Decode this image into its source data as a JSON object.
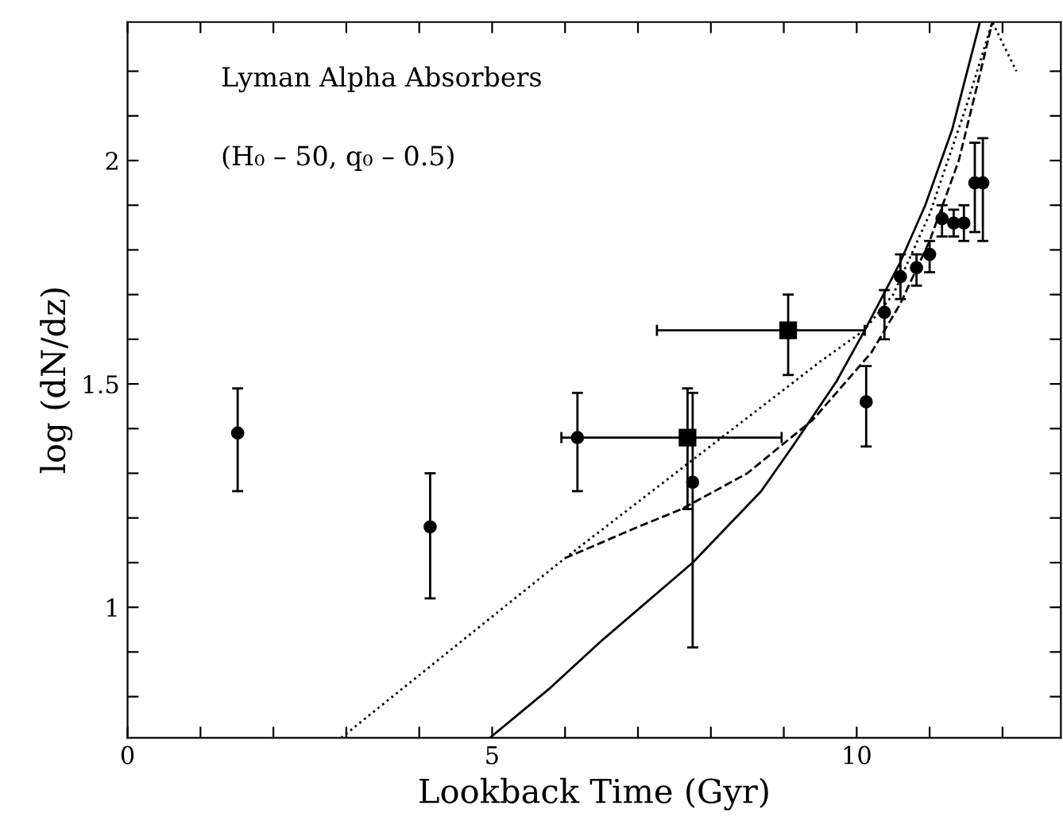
{
  "chart_data": {
    "type": "scatter",
    "xlabel": "Lookback Time (Gyr)",
    "ylabel": "log (dN/dz)",
    "annotations": [
      "Lyman Alpha Absorbers",
      "(H₀ – 50, q₀ – 0.5)"
    ],
    "xlim": [
      0,
      12.8
    ],
    "ylim": [
      0.708,
      2.31
    ],
    "xticks": [
      0,
      {
        "value": 1,
        "label": null
      },
      {
        "value": 2,
        "label": null
      },
      {
        "value": 3,
        "label": null
      },
      {
        "value": 4,
        "label": null
      },
      5,
      {
        "value": 6,
        "label": null
      },
      {
        "value": 7,
        "label": null
      },
      {
        "value": 8,
        "label": null
      },
      {
        "value": 9,
        "label": null
      },
      10,
      {
        "value": 11,
        "label": null
      },
      {
        "value": 12,
        "label": null
      }
    ],
    "yticks": [
      {
        "value": 0.8,
        "label": null
      },
      {
        "value": 0.9,
        "label": null
      },
      1,
      {
        "value": 1.1,
        "label": null
      },
      {
        "value": 1.2,
        "label": null
      },
      {
        "value": 1.3,
        "label": null
      },
      {
        "value": 1.4,
        "label": null
      },
      1.5,
      {
        "value": 1.6,
        "label": null
      },
      {
        "value": 1.7,
        "label": null
      },
      {
        "value": 1.8,
        "label": null
      },
      {
        "value": 1.9,
        "label": null
      },
      2,
      {
        "value": 2.1,
        "label": null
      },
      {
        "value": 2.2,
        "label": null
      }
    ],
    "grid": false,
    "legend": false,
    "series": [
      {
        "marker": "circle",
        "color": "#000000",
        "x": [
          1.51,
          4.15,
          6.17,
          7.75,
          10.13,
          10.38,
          10.6,
          10.82,
          11.0,
          11.17,
          11.33,
          11.47,
          11.62,
          11.73
        ],
        "values": [
          1.39,
          1.18,
          1.38,
          1.28,
          1.46,
          1.66,
          1.74,
          1.76,
          1.79,
          1.87,
          1.86,
          1.86,
          1.95,
          1.95
        ],
        "errors": [
          [
            1.26,
            1.49
          ],
          [
            1.02,
            1.3
          ],
          [
            1.26,
            1.48
          ],
          [
            0.91,
            1.48
          ],
          [
            1.36,
            1.54
          ],
          [
            1.6,
            1.71
          ],
          [
            1.69,
            1.79
          ],
          [
            1.72,
            1.79
          ],
          [
            1.75,
            1.82
          ],
          [
            1.83,
            1.9
          ],
          [
            1.83,
            1.89
          ],
          [
            1.82,
            1.9
          ],
          [
            1.84,
            2.04
          ],
          [
            1.82,
            2.05
          ]
        ]
      },
      {
        "marker": "square",
        "color": "#000000",
        "x": [
          7.68,
          9.06
        ],
        "values": [
          1.38,
          1.62
        ],
        "errors": [
          [
            1.22,
            1.49
          ],
          [
            1.52,
            1.7
          ]
        ],
        "xerrors": [
          [
            5.95,
            8.97
          ],
          [
            7.26,
            10.11
          ]
        ]
      },
      {
        "type": "line",
        "line_style": "solid",
        "color": "#000000",
        "x": [
          4.97,
          5.8,
          6.5,
          7.75,
          8.69,
          9.12,
          9.72,
          10.11,
          10.59,
          10.94,
          11.31,
          11.69
        ],
        "values": [
          0.708,
          0.82,
          0.925,
          1.1,
          1.26,
          1.36,
          1.505,
          1.62,
          1.77,
          1.9,
          2.07,
          2.31
        ]
      },
      {
        "type": "line",
        "line_style": "dashed",
        "color": "#000000",
        "x": [
          6.0,
          7.0,
          7.6,
          8.5,
          9.4,
          9.72,
          10.2,
          10.6,
          11.0,
          11.4,
          11.7,
          11.86
        ],
        "values": [
          1.11,
          1.18,
          1.22,
          1.3,
          1.42,
          1.48,
          1.57,
          1.68,
          1.82,
          2.0,
          2.2,
          2.31
        ]
      },
      {
        "type": "line",
        "line_style": "dotted",
        "color": "#000000",
        "x": [
          2.93,
          6.0,
          9.5,
          10.1,
          10.5,
          11.0,
          11.5,
          11.86,
          12.19
        ],
        "values": [
          0.708,
          1.11,
          1.55,
          1.62,
          1.7,
          1.88,
          2.12,
          2.31,
          2.2
        ]
      }
    ]
  }
}
